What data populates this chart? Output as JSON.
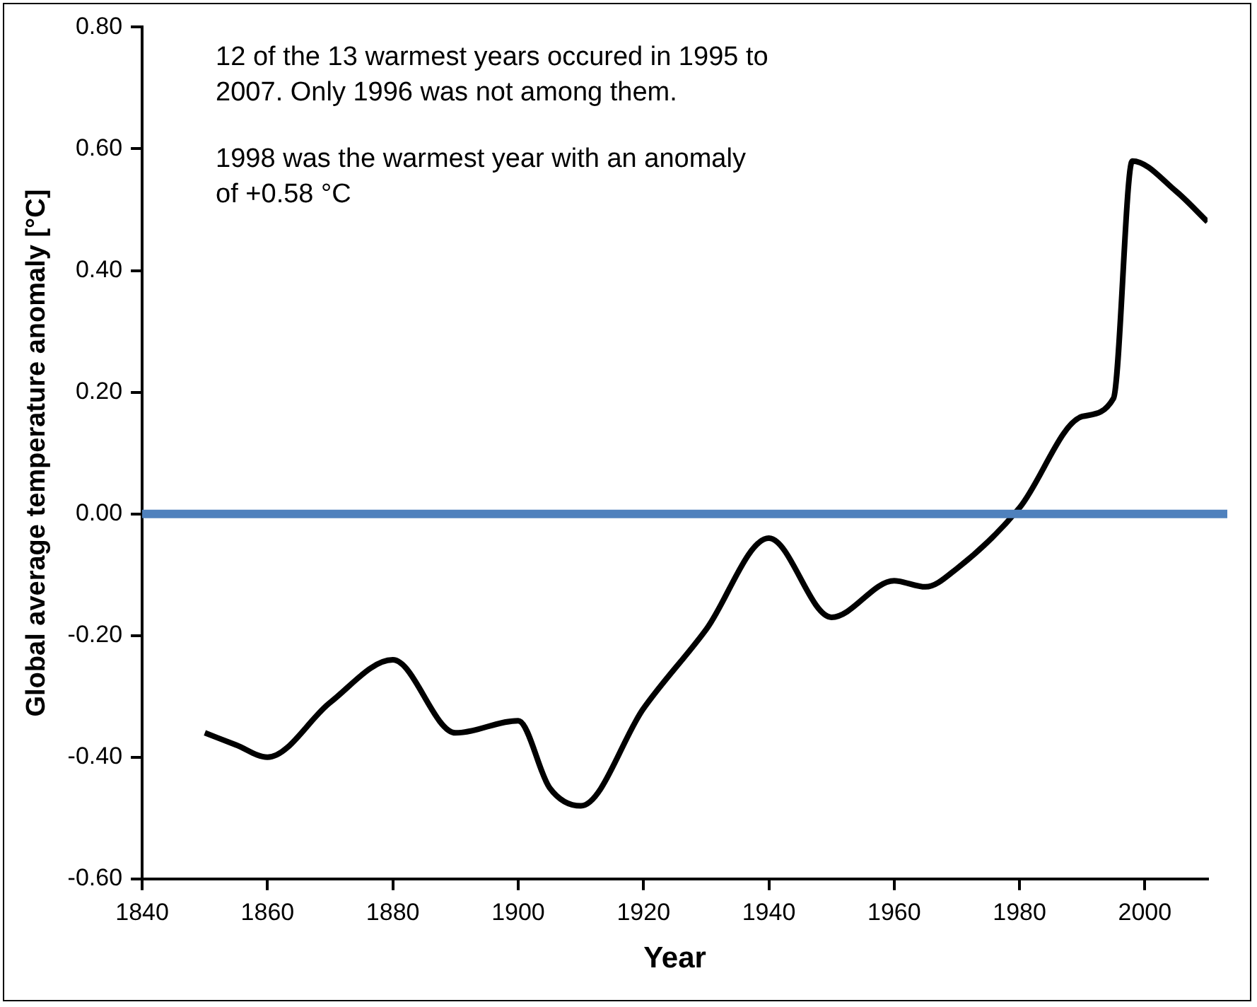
{
  "chart_data": {
    "type": "line",
    "xlabel": "Year",
    "ylabel": "Global average temperature anomaly [°C]",
    "x": [
      1850,
      1855,
      1860,
      1870,
      1880,
      1890,
      1900,
      1905,
      1910,
      1920,
      1930,
      1940,
      1950,
      1960,
      1965,
      1970,
      1980,
      1990,
      1995,
      1998,
      2005,
      2010
    ],
    "series": [
      {
        "color": "#000000",
        "values": [
          -0.36,
          -0.38,
          -0.4,
          -0.31,
          -0.24,
          -0.36,
          -0.34,
          -0.45,
          -0.48,
          -0.32,
          -0.19,
          -0.04,
          -0.17,
          -0.11,
          -0.12,
          -0.09,
          0.01,
          0.16,
          0.19,
          0.58,
          0.53,
          0.48
        ]
      }
    ],
    "xlim": [
      1840,
      2010
    ],
    "xticks": [
      1840,
      1860,
      1880,
      1900,
      1920,
      1940,
      1960,
      1980,
      2000
    ],
    "ylim": [
      -0.6,
      0.8
    ],
    "yticks": [
      {
        "value": -0.6,
        "label": "-0.60"
      },
      {
        "value": -0.4,
        "label": "-0.40"
      },
      {
        "value": -0.2,
        "label": "-0.20"
      },
      {
        "value": 0,
        "label": "0.00"
      },
      {
        "value": 0.2,
        "label": "0.20"
      },
      {
        "value": 0.4,
        "label": "0.40"
      },
      {
        "value": 0.6,
        "label": "0.60"
      },
      {
        "value": 0.8,
        "label": "0.80"
      }
    ],
    "ref_lines": [
      {
        "axis": "y",
        "value": 0,
        "color": "#4f81bd"
      }
    ],
    "annotations": [
      "12 of the 13 warmest years occured in 1995 to\n2007. Only 1996 was not among them.",
      "1998 was the warmest year with an anomaly\nof +0.58 °C"
    ],
    "grid": false,
    "legend": false,
    "marker": "none",
    "line_style": "solid"
  }
}
